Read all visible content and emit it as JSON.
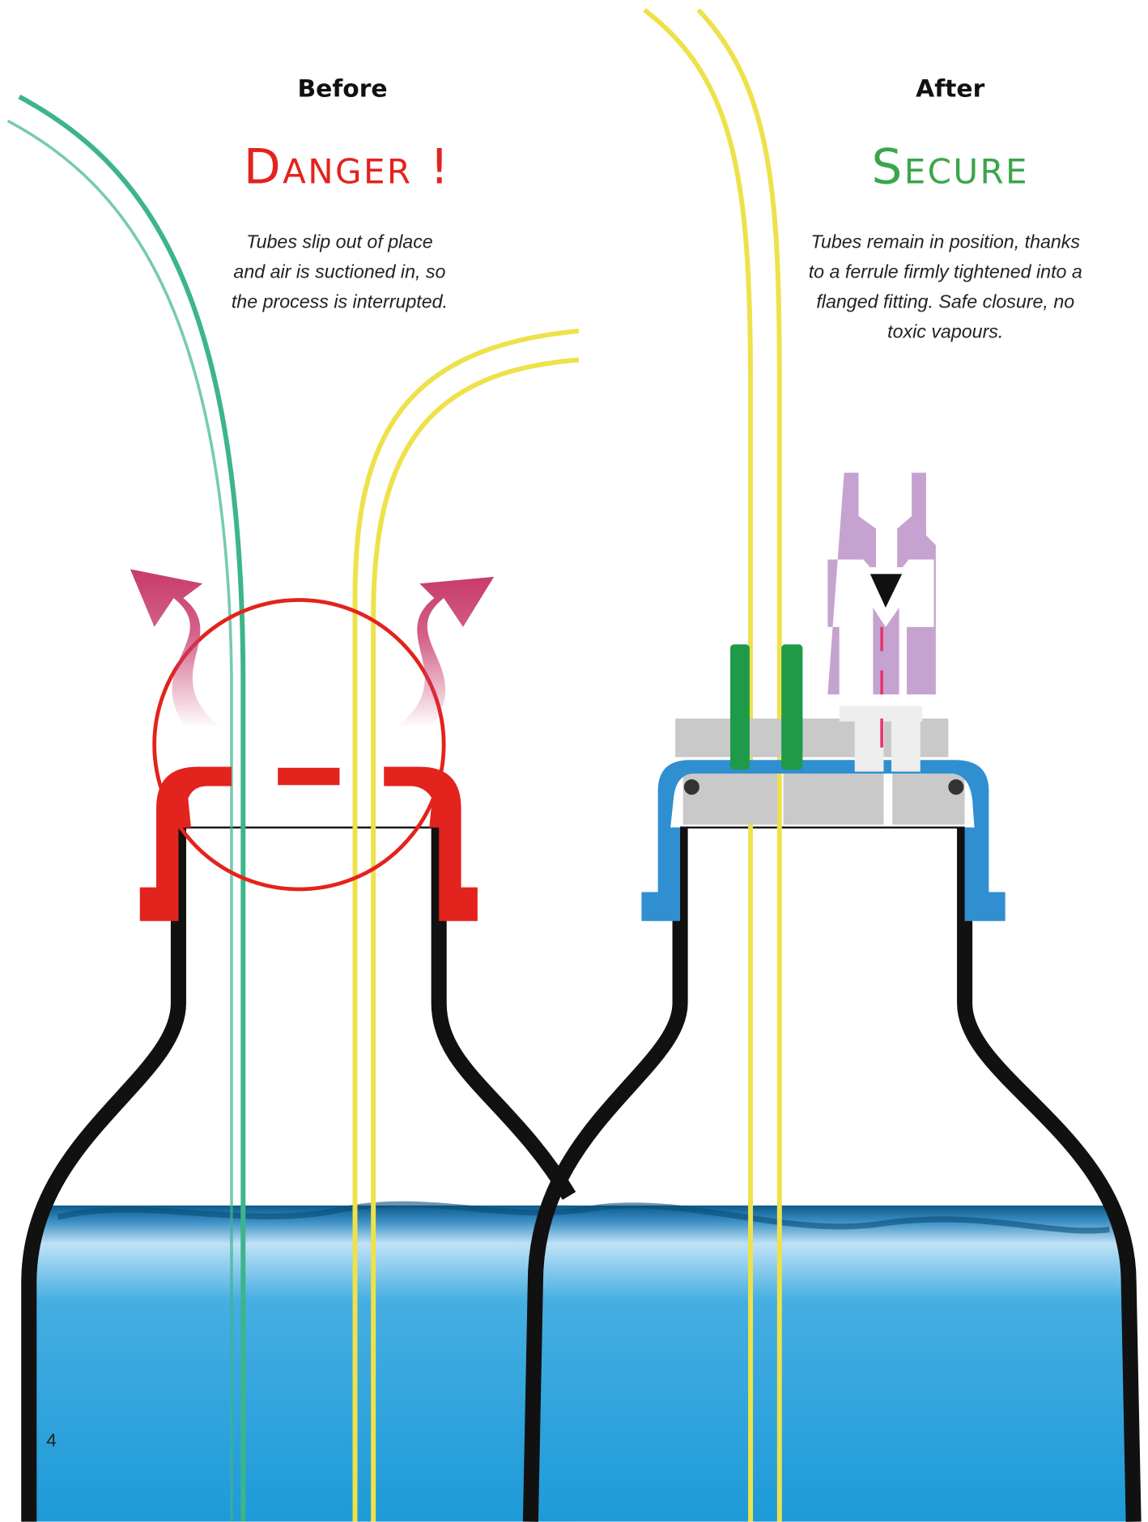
{
  "panels": [
    {
      "label": "Before",
      "heading": "Danger !",
      "description": [
        "Tubes slip out of place",
        "and air is suctioned in, so",
        "the process is interrupted."
      ]
    },
    {
      "label": "After",
      "heading": "Secure",
      "description": [
        "Tubes remain in position, thanks",
        "to a ferrule firmly tightened into a",
        "flanged fitting. Safe closure, no",
        "toxic vapours."
      ]
    }
  ],
  "page_number": "4"
}
